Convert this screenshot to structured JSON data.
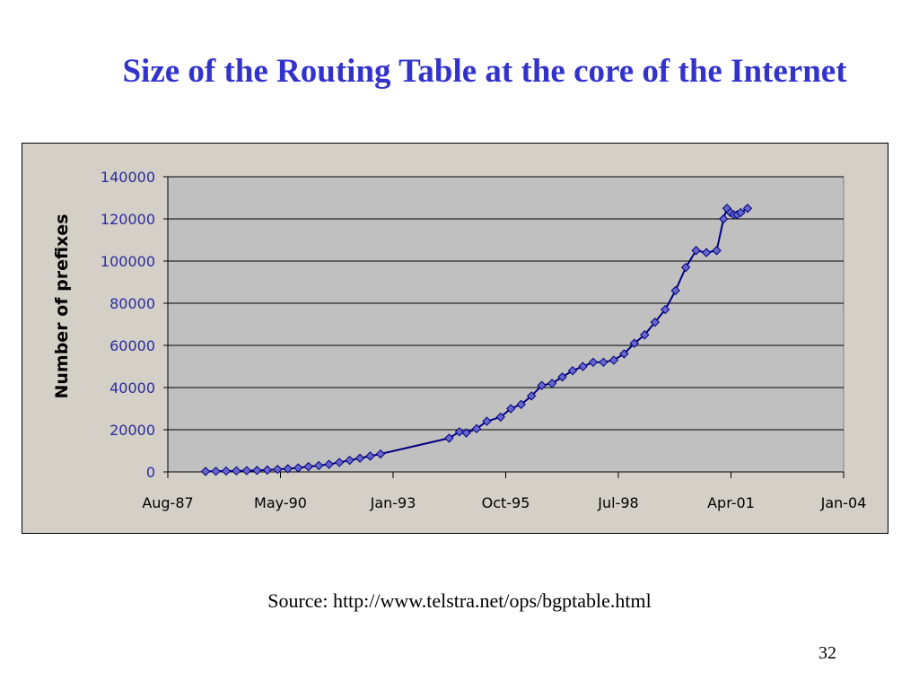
{
  "slide": {
    "title": "Size of the Routing Table at the core of the Internet",
    "source": "Source: http://www.telstra.net/ops/bgptable.html",
    "page_number": "32"
  },
  "colors": {
    "title": "#3333cc",
    "plot_area": "#c0c0c0",
    "chart_area": "#d4d0c8",
    "series": "#000080",
    "marker_fill": "#6666cc"
  },
  "chart_data": {
    "type": "line",
    "title": "",
    "xlabel": "",
    "ylabel": "Number of prefixes",
    "x_ticks": [
      "Aug-87",
      "May-90",
      "Jan-93",
      "Oct-95",
      "Jul-98",
      "Apr-01",
      "Jan-04"
    ],
    "x_range": [
      "1987-08",
      "2004-01"
    ],
    "ylim": [
      0,
      140000
    ],
    "y_ticks": [
      0,
      20000,
      40000,
      60000,
      80000,
      100000,
      120000,
      140000
    ],
    "grid": true,
    "legend": "none",
    "series": [
      {
        "x": [
          "1988-07",
          "1988-10",
          "1989-01",
          "1989-04",
          "1989-07",
          "1989-10",
          "1990-01",
          "1990-04",
          "1990-07",
          "1990-10",
          "1991-01",
          "1991-04",
          "1991-07",
          "1991-10",
          "1992-01",
          "1992-04",
          "1992-07",
          "1992-10",
          "1994-06",
          "1994-09",
          "1994-11",
          "1995-02",
          "1995-05",
          "1995-09",
          "1995-12",
          "1996-03",
          "1996-06",
          "1996-09",
          "1996-12",
          "1997-03",
          "1997-06",
          "1997-09",
          "1997-12",
          "1998-03",
          "1998-06",
          "1998-09",
          "1998-12",
          "1999-03",
          "1999-06",
          "1999-09",
          "1999-12",
          "2000-03",
          "2000-06",
          "2000-09",
          "2000-12",
          "2001-02",
          "2001-03",
          "2001-04",
          "2001-05",
          "2001-06",
          "2001-07",
          "2001-09"
        ],
        "values": [
          200,
          300,
          400,
          500,
          600,
          700,
          900,
          1200,
          1500,
          1900,
          2500,
          3000,
          3600,
          4500,
          5500,
          6500,
          7500,
          8500,
          16000,
          19000,
          18500,
          20500,
          24000,
          26000,
          30000,
          32000,
          36000,
          41000,
          42000,
          45000,
          48000,
          50000,
          52000,
          52000,
          53000,
          56000,
          61000,
          65000,
          71000,
          77000,
          86000,
          97000,
          105000,
          104000,
          105000,
          120000,
          125000,
          123000,
          122000,
          122000,
          123000,
          125000
        ]
      }
    ]
  }
}
